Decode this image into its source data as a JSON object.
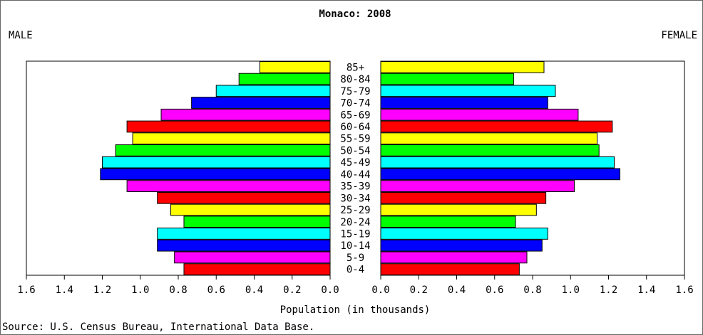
{
  "chart_data": {
    "type": "pyramid",
    "title": "Monaco: 2008",
    "categories": [
      "0-4",
      "5-9",
      "10-14",
      "15-19",
      "20-24",
      "25-29",
      "30-34",
      "35-39",
      "40-44",
      "45-49",
      "50-54",
      "55-59",
      "60-64",
      "65-69",
      "70-74",
      "75-79",
      "80-84",
      "85+"
    ],
    "colors": [
      "#ff0000",
      "#ff00ff",
      "#0000ff",
      "#00ffff",
      "#00ff00",
      "#ffff00",
      "#ff0000",
      "#ff00ff",
      "#0000ff",
      "#00ffff",
      "#00ff00",
      "#ffff00",
      "#ff0000",
      "#ff00ff",
      "#0000ff",
      "#00ffff",
      "#00ff00",
      "#ffff00"
    ],
    "series": [
      {
        "name": "MALE",
        "values": [
          0.77,
          0.82,
          0.91,
          0.91,
          0.77,
          0.84,
          0.91,
          1.07,
          1.21,
          1.2,
          1.13,
          1.04,
          1.07,
          0.89,
          0.73,
          0.6,
          0.48,
          0.37
        ]
      },
      {
        "name": "FEMALE",
        "values": [
          0.73,
          0.77,
          0.85,
          0.88,
          0.71,
          0.82,
          0.87,
          1.02,
          1.26,
          1.23,
          1.15,
          1.14,
          1.22,
          1.04,
          0.88,
          0.92,
          0.7,
          0.86
        ]
      }
    ],
    "xlim": [
      0,
      1.6
    ],
    "xticks": [
      {
        "value": 0,
        "label": "0.0"
      },
      {
        "value": 0.2,
        "label": "0.2"
      },
      {
        "value": 0.4,
        "label": "0.4"
      },
      {
        "value": 0.6,
        "label": "0.6"
      },
      {
        "value": 0.8,
        "label": "0.8"
      },
      {
        "value": 1,
        "label": "1.0"
      },
      {
        "value": 1.2,
        "label": "1.2"
      },
      {
        "value": 1.4,
        "label": "1.4"
      },
      {
        "value": 1.6,
        "label": "1.6"
      }
    ],
    "xlabel": "Population (in thousands)",
    "source": "Source: U.S. Census Bureau, International Data Base."
  }
}
